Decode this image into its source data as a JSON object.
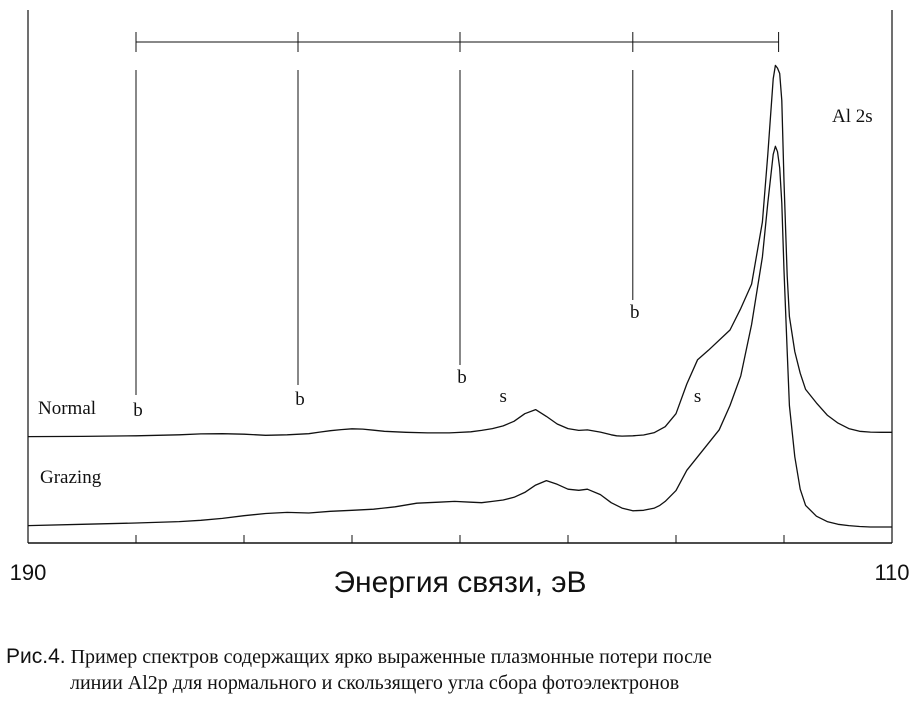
{
  "chart_data": {
    "type": "line",
    "title": "",
    "xlabel": "Энергия связи, эВ",
    "ylabel": "",
    "xlim": [
      190,
      110
    ],
    "x_reversed": true,
    "x_ticks": [
      190,
      180,
      170,
      160,
      150,
      140,
      130,
      120,
      110
    ],
    "x_tick_labels": [
      "190",
      "",
      "",
      "",
      "",
      "",
      "",
      "",
      "110"
    ],
    "grid": false,
    "legend": "none",
    "series": [
      {
        "name": "Normal",
        "x": [
          190,
          185,
          180,
          176,
          174,
          172,
          170,
          168,
          166,
          164,
          163,
          162,
          161,
          160,
          159,
          158,
          157,
          155,
          153,
          151,
          150.5,
          149,
          148,
          147,
          146,
          145,
          144,
          143,
          142,
          141,
          140,
          139,
          138.2,
          137,
          136,
          135.5,
          135,
          134,
          133,
          132,
          131,
          130,
          129,
          128,
          127,
          125,
          124,
          123,
          122,
          121.5,
          121,
          120.8,
          120.6,
          120.4,
          120.2,
          120,
          119.7,
          119.5,
          119,
          118.5,
          118,
          117,
          116,
          115,
          114,
          113,
          112,
          111,
          110
        ],
        "y": [
          0.05,
          0.06,
          0.08,
          0.12,
          0.15,
          0.16,
          0.14,
          0.1,
          0.12,
          0.16,
          0.22,
          0.27,
          0.31,
          0.34,
          0.33,
          0.29,
          0.25,
          0.21,
          0.19,
          0.19,
          0.2,
          0.23,
          0.28,
          0.35,
          0.45,
          0.62,
          0.9,
          1.05,
          0.8,
          0.52,
          0.35,
          0.28,
          0.3,
          0.22,
          0.12,
          0.08,
          0.07,
          0.08,
          0.11,
          0.2,
          0.42,
          0.9,
          2.0,
          2.9,
          3.25,
          4.0,
          4.8,
          5.7,
          8.0,
          10.5,
          13.3,
          13.8,
          13.7,
          13.5,
          12.5,
          9.5,
          6.0,
          4.5,
          3.2,
          2.4,
          1.8,
          1.3,
          0.85,
          0.55,
          0.35,
          0.25,
          0.22,
          0.21,
          0.21
        ],
        "annotations": [
          {
            "text": "b",
            "x": 180
          },
          {
            "text": "b",
            "x": 165
          },
          {
            "text": "b",
            "x": 150
          },
          {
            "text": "s",
            "x": 146
          },
          {
            "text": "b",
            "x": 134
          },
          {
            "text": "s",
            "x": 128
          }
        ]
      },
      {
        "name": "Grazing",
        "x": [
          190,
          185,
          180,
          176,
          174,
          172,
          170,
          168,
          166,
          164,
          162,
          160,
          158,
          156,
          154,
          152,
          150.5,
          149,
          148,
          147,
          146,
          145,
          144,
          143,
          142,
          141,
          140,
          139,
          138.2,
          137,
          136,
          135,
          134,
          133,
          132,
          131.5,
          131,
          130,
          129,
          128,
          127,
          126,
          125,
          124,
          123,
          122,
          121.5,
          121,
          120.8,
          120.6,
          120.4,
          120.2,
          120,
          119.7,
          119.5,
          119,
          118.5,
          118,
          117,
          116,
          115,
          114,
          113,
          112,
          111,
          110
        ],
        "y": [
          -0.95,
          -0.9,
          -0.85,
          -0.8,
          -0.75,
          -0.68,
          -0.58,
          -0.5,
          -0.46,
          -0.48,
          -0.42,
          -0.38,
          -0.34,
          -0.25,
          -0.12,
          -0.08,
          -0.05,
          -0.08,
          -0.1,
          -0.05,
          0.0,
          0.1,
          0.28,
          0.55,
          0.72,
          0.58,
          0.4,
          0.36,
          0.4,
          0.2,
          -0.1,
          -0.3,
          -0.4,
          -0.38,
          -0.3,
          -0.2,
          -0.05,
          0.35,
          1.1,
          1.6,
          2.1,
          2.6,
          3.5,
          4.6,
          6.5,
          9.0,
          11.0,
          12.8,
          13.1,
          12.9,
          12.3,
          11.0,
          8.5,
          5.5,
          3.5,
          1.6,
          0.4,
          -0.2,
          -0.6,
          -0.8,
          -0.9,
          -0.95,
          -0.98,
          -1.0,
          -1.0,
          -1.0
        ]
      }
    ],
    "annotations": [
      {
        "text": "Al 2s",
        "x": 117
      },
      {
        "text": "Normal",
        "x": 186
      },
      {
        "text": "Grazing",
        "x": 186
      }
    ],
    "loss_markers_x": [
      180,
      165,
      150,
      134,
      120.5
    ]
  },
  "caption": {
    "lead": "Рис.4.",
    "text": " Пример спектров содержащих ярко выраженные плазмонные потери после",
    "line2": "линии Al2p для нормального и скользящего угла сбора фотоэлектронов"
  }
}
